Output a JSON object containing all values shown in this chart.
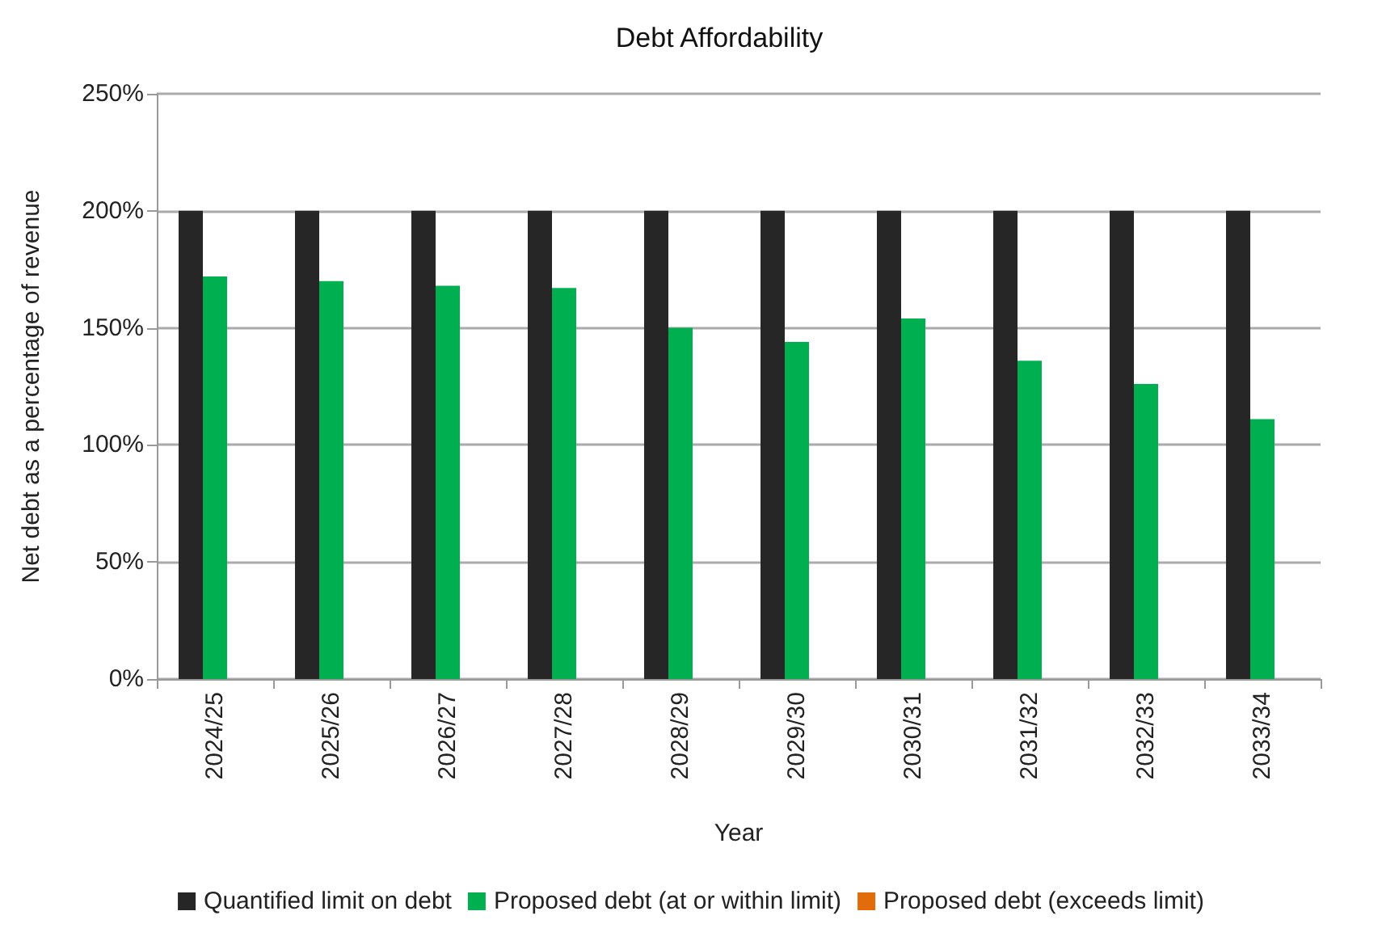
{
  "chart_data": {
    "type": "bar",
    "title": "Debt Affordability",
    "xlabel": "Year",
    "ylabel": "Net debt as a percentage of revenue",
    "categories": [
      "2024/25",
      "2025/26",
      "2026/27",
      "2027/28",
      "2028/29",
      "2029/30",
      "2030/31",
      "2031/32",
      "2032/33",
      "2033/34"
    ],
    "series": [
      {
        "name": "Quantified limit on debt",
        "color": "#262626",
        "values": [
          200,
          200,
          200,
          200,
          200,
          200,
          200,
          200,
          200,
          200
        ]
      },
      {
        "name": "Proposed debt (at or within limit)",
        "color": "#00b050",
        "values": [
          172,
          170,
          168,
          167,
          150,
          144,
          154,
          136,
          126,
          111
        ]
      },
      {
        "name": "Proposed debt (exceeds limit)",
        "color": "#e36c0a",
        "values": [
          null,
          null,
          null,
          null,
          null,
          null,
          null,
          null,
          null,
          null
        ]
      }
    ],
    "ylim": [
      0,
      250
    ],
    "yticks": [
      {
        "value": 0,
        "label": "0%"
      },
      {
        "value": 50,
        "label": "50%"
      },
      {
        "value": 100,
        "label": "100%"
      },
      {
        "value": 150,
        "label": "150%"
      },
      {
        "value": 200,
        "label": "200%"
      },
      {
        "value": 250,
        "label": "250%"
      }
    ],
    "grid": "y",
    "legend": "bottom"
  }
}
